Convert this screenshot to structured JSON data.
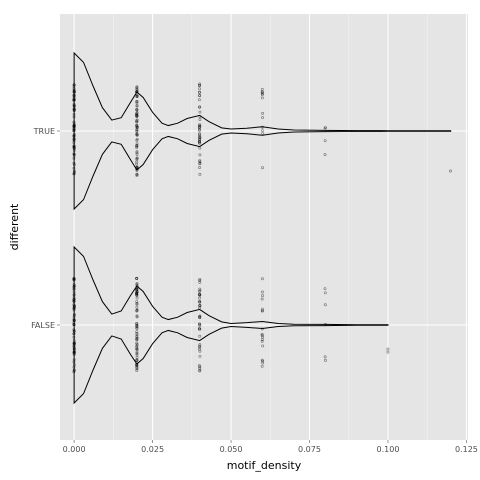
{
  "chart_data": {
    "type": "violin",
    "orientation": "horizontal",
    "title": "",
    "xlabel": "motif_density",
    "ylabel": "different",
    "xlim": [
      -0.0045,
      0.1255
    ],
    "x_ticks": [
      0.0,
      0.025,
      0.05,
      0.075,
      0.1,
      0.125
    ],
    "x_tick_labels": [
      "0.000",
      "0.025",
      "0.050",
      "0.075",
      "0.100",
      "0.125"
    ],
    "categories": [
      "TRUE",
      "FALSE"
    ],
    "grid": true,
    "background": "#e5e5e5",
    "groups": [
      {
        "category": "TRUE",
        "max_value": 0.12,
        "density_profile": [
          [
            0.0,
            1.0
          ],
          [
            0.003,
            0.88
          ],
          [
            0.006,
            0.58
          ],
          [
            0.009,
            0.3
          ],
          [
            0.012,
            0.14
          ],
          [
            0.015,
            0.17
          ],
          [
            0.018,
            0.37
          ],
          [
            0.02,
            0.5
          ],
          [
            0.022,
            0.43
          ],
          [
            0.025,
            0.24
          ],
          [
            0.028,
            0.1
          ],
          [
            0.03,
            0.07
          ],
          [
            0.033,
            0.1
          ],
          [
            0.036,
            0.16
          ],
          [
            0.04,
            0.2
          ],
          [
            0.043,
            0.12
          ],
          [
            0.047,
            0.04
          ],
          [
            0.05,
            0.025
          ],
          [
            0.055,
            0.035
          ],
          [
            0.06,
            0.055
          ],
          [
            0.065,
            0.025
          ],
          [
            0.07,
            0.012
          ],
          [
            0.08,
            0.008
          ],
          [
            0.09,
            0.005
          ],
          [
            0.1,
            0.004
          ],
          [
            0.11,
            0.003
          ],
          [
            0.12,
            0.003
          ]
        ],
        "points": [
          {
            "x": 0.0,
            "n": 70
          },
          {
            "x": 0.02,
            "n": 70
          },
          {
            "x": 0.04,
            "n": 40
          },
          {
            "x": 0.06,
            "n": 12
          },
          {
            "x": 0.08,
            "n": 4
          },
          {
            "x": 0.12,
            "n": 1
          }
        ]
      },
      {
        "category": "FALSE",
        "max_value": 0.1,
        "density_profile": [
          [
            0.0,
            1.0
          ],
          [
            0.003,
            0.88
          ],
          [
            0.006,
            0.58
          ],
          [
            0.009,
            0.3
          ],
          [
            0.012,
            0.14
          ],
          [
            0.015,
            0.18
          ],
          [
            0.018,
            0.38
          ],
          [
            0.02,
            0.5
          ],
          [
            0.022,
            0.43
          ],
          [
            0.025,
            0.24
          ],
          [
            0.028,
            0.1
          ],
          [
            0.03,
            0.07
          ],
          [
            0.033,
            0.1
          ],
          [
            0.036,
            0.16
          ],
          [
            0.04,
            0.2
          ],
          [
            0.043,
            0.12
          ],
          [
            0.047,
            0.04
          ],
          [
            0.05,
            0.02
          ],
          [
            0.055,
            0.03
          ],
          [
            0.06,
            0.045
          ],
          [
            0.065,
            0.02
          ],
          [
            0.07,
            0.01
          ],
          [
            0.08,
            0.008
          ],
          [
            0.09,
            0.004
          ],
          [
            0.1,
            0.003
          ]
        ],
        "points": [
          {
            "x": 0.0,
            "n": 70
          },
          {
            "x": 0.02,
            "n": 70
          },
          {
            "x": 0.04,
            "n": 40
          },
          {
            "x": 0.06,
            "n": 18
          },
          {
            "x": 0.08,
            "n": 6
          },
          {
            "x": 0.1,
            "n": 2
          }
        ]
      }
    ]
  }
}
